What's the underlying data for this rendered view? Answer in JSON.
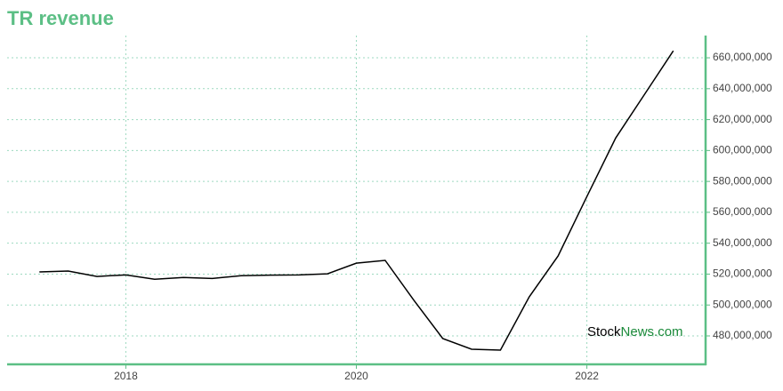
{
  "chart_data": {
    "type": "line",
    "title": "TR revenue",
    "watermark": {
      "first": "Stock",
      "second": "News.com"
    },
    "x": [
      2017.25,
      2017.5,
      2017.75,
      2018,
      2018.25,
      2018.5,
      2018.75,
      2019,
      2019.25,
      2019.5,
      2019.75,
      2020,
      2020.25,
      2020.5,
      2020.75,
      2021,
      2021.25,
      2021.5,
      2021.75,
      2022,
      2022.25,
      2022.5,
      2022.75
    ],
    "values": [
      521400000,
      522000000,
      518500000,
      519500000,
      516700000,
      517800000,
      517200000,
      519000000,
      519300000,
      519500000,
      520200000,
      527100000,
      528900000,
      503000000,
      478300000,
      471400000,
      470800000,
      505300000,
      531700000,
      570200000,
      608100000,
      636300000,
      664500000
    ],
    "color": "#000000",
    "xlim": [
      2016.97,
      2023.03
    ],
    "xticks": [
      2018,
      2020,
      2022
    ],
    "ylim": [
      461600000,
      674400000
    ],
    "yticks": [
      {
        "value": 480000000,
        "label": "480,000,000"
      },
      {
        "value": 500000000,
        "label": "500,000,000"
      },
      {
        "value": 520000000,
        "label": "520,000,000"
      },
      {
        "value": 540000000,
        "label": "540,000,000"
      },
      {
        "value": 560000000,
        "label": "560,000,000"
      },
      {
        "value": 580000000,
        "label": "580,000,000"
      },
      {
        "value": 600000000,
        "label": "600,000,000"
      },
      {
        "value": 620000000,
        "label": "620,000,000"
      },
      {
        "value": 640000000,
        "label": "640,000,000"
      },
      {
        "value": 660000000,
        "label": "660,000,000"
      }
    ],
    "grid": true
  }
}
